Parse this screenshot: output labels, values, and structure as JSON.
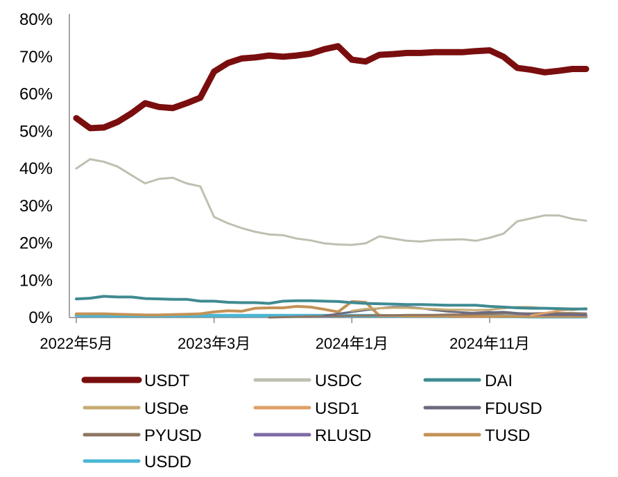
{
  "chart_data": {
    "type": "line",
    "title": "",
    "xlabel": "",
    "ylabel": "",
    "ylim": [
      0,
      80
    ],
    "y_ticks": [
      "0%",
      "10%",
      "20%",
      "30%",
      "40%",
      "50%",
      "60%",
      "70%",
      "80%"
    ],
    "x_tick_labels": [
      {
        "index": 0,
        "label": "2022年5月"
      },
      {
        "index": 10,
        "label": "2023年3月"
      },
      {
        "index": 20,
        "label": "2024年1月"
      },
      {
        "index": 30,
        "label": "2024年11月"
      }
    ],
    "x_count": 38,
    "grid": false,
    "legend_position": "bottom",
    "series": [
      {
        "name": "USDT",
        "color": "#7a0e0e",
        "width": 9,
        "start": 0,
        "values": [
          53.5,
          50.8,
          51,
          52.5,
          54.8,
          57.5,
          56.5,
          56.2,
          57.5,
          59,
          66,
          68.3,
          69.5,
          69.8,
          70.3,
          70,
          70.3,
          70.8,
          72,
          72.8,
          69.2,
          68.7,
          70.5,
          70.7,
          71,
          71,
          71.2,
          71.2,
          71.2,
          71.5,
          71.7,
          70,
          67,
          66.5,
          65.8,
          66.2,
          66.7,
          66.7
        ]
      },
      {
        "name": "USDC",
        "color": "#bfbfb1",
        "width": 3,
        "start": 0,
        "values": [
          40,
          42.5,
          41.8,
          40.5,
          38.2,
          36,
          37.2,
          37.5,
          36,
          35.2,
          27,
          25.3,
          24,
          23,
          22.3,
          22.1,
          21.2,
          20.7,
          19.9,
          19.6,
          19.5,
          19.9,
          21.8,
          21.2,
          20.6,
          20.4,
          20.8,
          20.9,
          21,
          20.6,
          21.4,
          22.5,
          25.8,
          26.6,
          27.4,
          27.4,
          26.5,
          26
        ]
      },
      {
        "name": "DAI",
        "color": "#3f8a92",
        "width": 4,
        "start": 0,
        "values": [
          5,
          5.2,
          5.7,
          5.5,
          5.5,
          5.1,
          5,
          4.9,
          4.9,
          4.4,
          4.4,
          4.1,
          4,
          4,
          3.8,
          4.4,
          4.5,
          4.5,
          4.4,
          4.3,
          4,
          3.8,
          3.7,
          3.6,
          3.5,
          3.5,
          3.4,
          3.3,
          3.3,
          3.3,
          3,
          2.8,
          2.6,
          2.5,
          2.5,
          2.4,
          2.3,
          2.3
        ]
      },
      {
        "name": "USDe",
        "color": "#c6ac72",
        "width": 3,
        "start": 20,
        "values": [
          1.8,
          2.3,
          2.5,
          2.6,
          2.6,
          2.4,
          2.3,
          2.1,
          2.1,
          2,
          2.1,
          2.5,
          2.8,
          2.8,
          2.5,
          2.2,
          2,
          2.4
        ]
      },
      {
        "name": "USD1",
        "color": "#dfa06b",
        "width": 3,
        "start": 33,
        "values": [
          0.6,
          1.2,
          1.8,
          2.2,
          2.5
        ]
      },
      {
        "name": "FDUSD",
        "color": "#6b6b7e",
        "width": 3,
        "start": 18,
        "values": [
          0.5,
          1,
          1.5,
          2,
          2.5,
          2.8,
          2.8,
          2.5,
          2,
          1.6,
          1.4,
          1.2,
          1.4,
          1.5,
          1.2,
          1,
          0.9,
          0.8,
          0.8,
          0.7
        ]
      },
      {
        "name": "PYUSD",
        "color": "#8d7562",
        "width": 3,
        "start": 14,
        "values": [
          0,
          0.1,
          0.2,
          0.3,
          0.4,
          0.4,
          0.5,
          0.5,
          0.6,
          0.6,
          0.7,
          0.7,
          0.7,
          0.8,
          0.8,
          0.9,
          1,
          1.1,
          1.1,
          1.1,
          1.2,
          1.2,
          1.2,
          1.1
        ]
      },
      {
        "name": "RLUSD",
        "color": "#7e6aa3",
        "width": 3,
        "start": 28,
        "values": [
          1,
          1.3,
          1.5,
          1.2,
          1,
          0.8,
          0.7,
          0.7,
          0.7,
          0.6
        ]
      },
      {
        "name": "TUSD",
        "color": "#c49256",
        "width": 4,
        "start": 0,
        "values": [
          1,
          1,
          1,
          0.9,
          0.8,
          0.7,
          0.7,
          0.8,
          0.9,
          1,
          1.5,
          1.8,
          1.7,
          2.5,
          2.6,
          2.6,
          3,
          2.8,
          2.2,
          1.5,
          4.3,
          4.1,
          0.5,
          0.5,
          0.4,
          0.4,
          0.4,
          0.4,
          0.3,
          0.3,
          0.3,
          0.3,
          0.3,
          0.3,
          0.3,
          0.3,
          0.3,
          0.3
        ]
      },
      {
        "name": "USDD",
        "color": "#4bb6d4",
        "width": 5,
        "start": 0,
        "values": [
          0.6,
          0.5,
          0.5,
          0.5,
          0.5,
          0.5,
          0.5,
          0.5,
          0.5,
          0.5,
          0.5,
          0.5,
          0.5,
          0.5,
          0.5,
          0.5,
          0.5,
          0.5,
          0.5,
          0.5,
          0.5,
          0.5,
          0.5,
          0.4,
          0.4,
          0.4,
          0.4,
          0.4,
          0.4,
          0.4,
          0.4,
          0.3,
          0.3,
          0.2,
          0.2,
          0.2,
          0.2,
          0.2
        ]
      }
    ]
  }
}
